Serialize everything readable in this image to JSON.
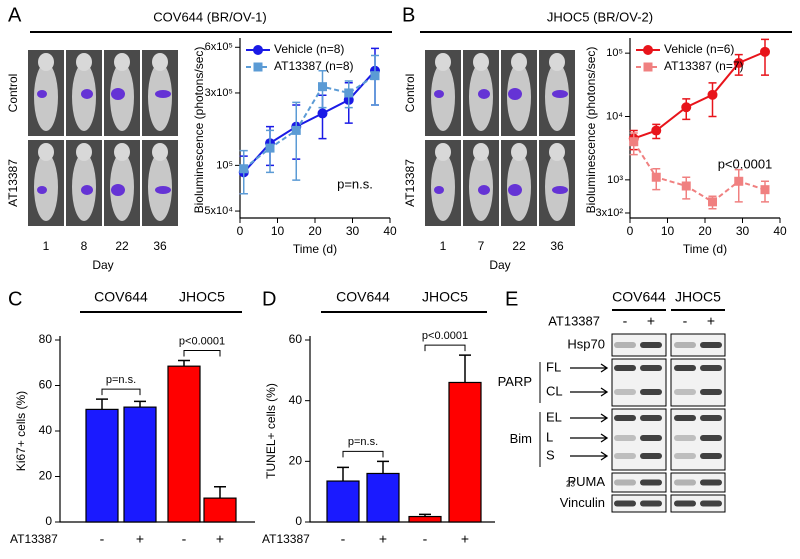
{
  "panel_labels": [
    "A",
    "B",
    "C",
    "D",
    "E"
  ],
  "image_panels": [
    {
      "row_labels": [
        "Control",
        "AT13387"
      ],
      "day_labels": [
        "1",
        "8",
        "22",
        "36"
      ],
      "xlabel": "Day"
    },
    {
      "row_labels": [
        "Control",
        "AT13387"
      ],
      "day_labels": [
        "1",
        "7",
        "22",
        "36"
      ],
      "xlabel": "Day"
    }
  ],
  "chart_data": [
    {
      "type": "line",
      "title": "COV644 (BR/OV-1)",
      "title_color": "#1a1aff",
      "log_y": true,
      "xlabel": "Time (d)",
      "ylabel": "Bioluminescence (photons/sec)",
      "x": [
        1,
        8,
        15,
        22,
        29,
        36
      ],
      "xlim": [
        0,
        40
      ],
      "xticks": [
        0,
        10,
        20,
        30,
        40
      ],
      "ylim": [
        45000,
        650000
      ],
      "yticks": [
        {
          "value": 50000,
          "label": "5x10⁴"
        },
        {
          "value": 100000,
          "label": "10⁵"
        },
        {
          "value": 300000,
          "label": "3x10⁵"
        },
        {
          "value": 600000,
          "label": "6x10⁵"
        }
      ],
      "series": [
        {
          "name": "Vehicle (n=8)",
          "color": "#1a1ae6",
          "marker": "circle",
          "dashed": false,
          "values": [
            90000,
            140000,
            180000,
            220000,
            270000,
            420000
          ],
          "errors": [
            25000,
            40000,
            70000,
            70000,
            80000,
            170000
          ]
        },
        {
          "name": "AT13387 (n=8)",
          "color": "#5b9bd5",
          "marker": "square",
          "dashed": true,
          "values": [
            95000,
            130000,
            170000,
            330000,
            300000,
            390000
          ],
          "errors": [
            30000,
            40000,
            90000,
            90000,
            60000,
            140000
          ]
        }
      ],
      "annotation": "p=n.s."
    },
    {
      "type": "line",
      "title": "JHOC5 (BR/OV-2)",
      "title_color": "#e8141b",
      "log_y": true,
      "xlabel": "Time (d)",
      "ylabel": "Bioluminescence (photons/sec)",
      "x": [
        1,
        7,
        15,
        22,
        29,
        36
      ],
      "xlim": [
        0,
        40
      ],
      "xticks": [
        0,
        10,
        20,
        30,
        40
      ],
      "ylim": [
        250,
        150000
      ],
      "yticks": [
        {
          "value": 300,
          "label": "3x10²"
        },
        {
          "value": 1000,
          "label": "10³"
        },
        {
          "value": 10000,
          "label": "10⁴"
        },
        {
          "value": 100000,
          "label": "10⁵"
        }
      ],
      "series": [
        {
          "name": "Vehicle (n=6)",
          "color": "#e8141b",
          "marker": "circle",
          "dashed": false,
          "values": [
            4500,
            6000,
            14000,
            22000,
            70000,
            105000
          ],
          "errors": [
            1500,
            1500,
            5000,
            12000,
            25000,
            60000
          ]
        },
        {
          "name": "AT13387 (n=7)",
          "color": "#f08080",
          "marker": "square",
          "dashed": true,
          "values": [
            4000,
            1100,
            800,
            450,
            950,
            700
          ],
          "errors": [
            1500,
            400,
            300,
            100,
            500,
            250
          ]
        }
      ],
      "annotation": "p<0.0001"
    },
    {
      "type": "bar",
      "ylabel": "Ki67+ cells (%)",
      "groups": [
        "COV644",
        "JHOC5"
      ],
      "group_colors": [
        "#1a1aff",
        "#e8141b"
      ],
      "row_label": "AT13387",
      "categories": [
        "-",
        "+",
        "-",
        "+"
      ],
      "values": [
        49.5,
        50.5,
        68.5,
        10.5
      ],
      "errors": [
        4.5,
        2.5,
        2.5,
        5
      ],
      "colors": [
        "#1a1aff",
        "#1a1aff",
        "#ff0000",
        "#ff0000"
      ],
      "ylim": [
        0,
        80
      ],
      "yticks": [
        0,
        20,
        40,
        60,
        80
      ],
      "annotations": [
        "p=n.s.",
        "p<0.0001"
      ]
    },
    {
      "type": "bar",
      "ylabel": "TUNEL+ cells (%)",
      "groups": [
        "COV644",
        "JHOC5"
      ],
      "group_colors": [
        "#1a1aff",
        "#e8141b"
      ],
      "row_label": "AT13387",
      "categories": [
        "-",
        "+",
        "-",
        "+"
      ],
      "values": [
        13.5,
        16,
        1.8,
        46
      ],
      "errors": [
        4.5,
        4,
        0.7,
        9
      ],
      "colors": [
        "#1a1aff",
        "#1a1aff",
        "#ff0000",
        "#ff0000"
      ],
      "ylim": [
        0,
        60
      ],
      "yticks": [
        0,
        20,
        40,
        60
      ],
      "annotations": [
        "p=n.s.",
        "p<0.0001"
      ]
    }
  ],
  "blot": {
    "groups": [
      "COV644",
      "JHOC5"
    ],
    "treatment_label": "AT13387",
    "lanes": [
      "-",
      "+",
      "-",
      "+"
    ],
    "rows": [
      {
        "label": "Hsp70"
      },
      {
        "label": "PARP",
        "bands": [
          "FL",
          "CL"
        ]
      },
      {
        "label": "Bim",
        "bands": [
          "EL",
          "L",
          "S"
        ]
      },
      {
        "label": "PUMA",
        "marker": "23"
      },
      {
        "label": "Vinculin"
      }
    ]
  }
}
